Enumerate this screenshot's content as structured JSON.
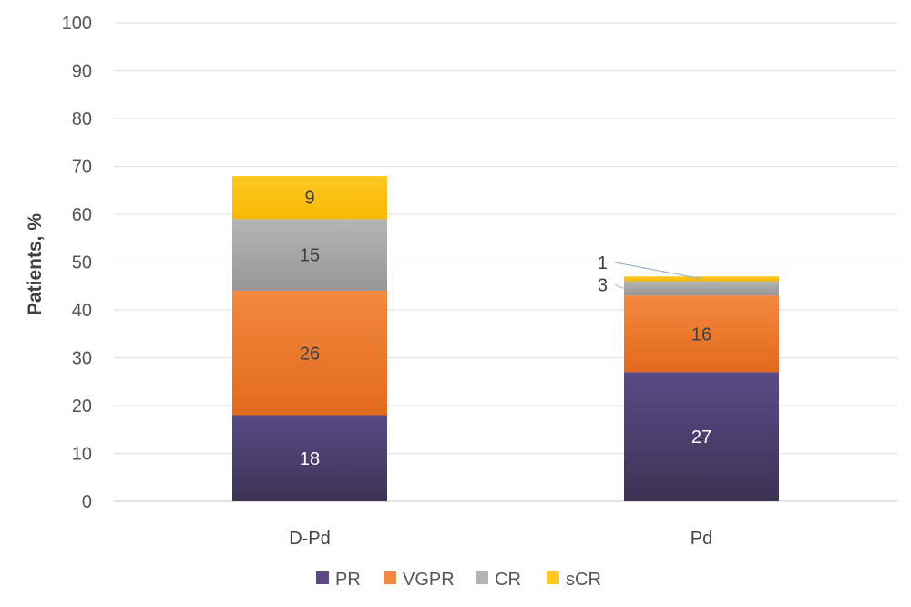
{
  "chart_data": {
    "type": "bar",
    "stacked": true,
    "title": "",
    "xlabel": "",
    "ylabel": "Patients, %",
    "ylim": [
      0,
      100
    ],
    "yticks": [
      0,
      10,
      20,
      30,
      40,
      50,
      60,
      70,
      80,
      90,
      100
    ],
    "grid": true,
    "legend_position": "bottom",
    "categories": [
      "D-Pd",
      "Pd"
    ],
    "series": [
      {
        "name": "PR",
        "values": [
          18,
          27
        ],
        "color": "#5b4a86",
        "color_dark": "#3c3354",
        "label_color": "#ffffff"
      },
      {
        "name": "VGPR",
        "values": [
          26,
          16
        ],
        "color": "#f3883f",
        "color_dark": "#e26a1c",
        "label_color": "#404040"
      },
      {
        "name": "CR",
        "values": [
          15,
          3
        ],
        "color": "#b4b4b4",
        "color_dark": "#979797",
        "label_color": "#404040"
      },
      {
        "name": "sCR",
        "values": [
          9,
          1
        ],
        "color": "#ffc825",
        "color_dark": "#f6b800",
        "label_color": "#404040"
      }
    ],
    "data_labels": [
      [
        "18",
        "26",
        "15",
        "9"
      ],
      [
        "27",
        "16",
        "3",
        "1"
      ]
    ]
  }
}
